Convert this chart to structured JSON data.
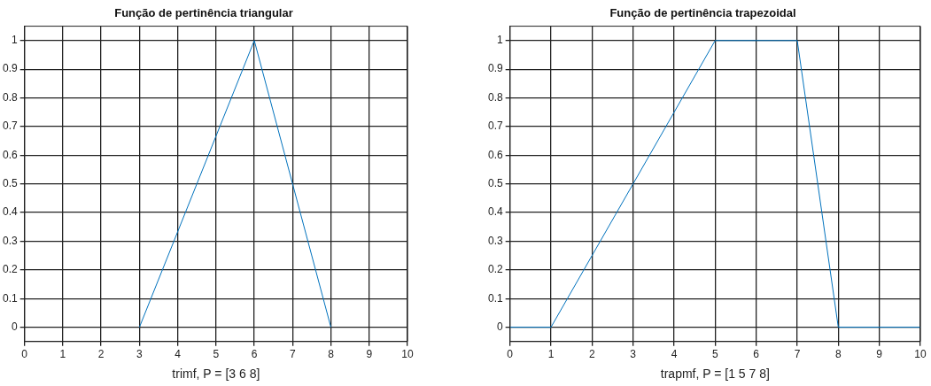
{
  "chart_data": [
    {
      "type": "line",
      "title": "Função de pertinência triangular",
      "xlabel": "trimf, P = [3 6 8]",
      "x": [
        3,
        6,
        8
      ],
      "series": [
        {
          "color": "#0072bd",
          "values": [
            0,
            1,
            0
          ]
        }
      ],
      "xlim": [
        0,
        10
      ],
      "xticks": [
        0,
        1,
        2,
        3,
        4,
        5,
        6,
        7,
        8,
        9,
        10
      ],
      "ylim": [
        -0.05,
        1.05
      ],
      "yticks": [
        0,
        0.1,
        0.2,
        0.3,
        0.4,
        0.5,
        0.6,
        0.7,
        0.8,
        0.9,
        1
      ],
      "grid": true,
      "legend": false,
      "marker": "none",
      "line_style": "solid"
    },
    {
      "type": "line",
      "title": "Função de pertinência trapezoidal",
      "xlabel": "trapmf, P = [1 5 7 8]",
      "x": [
        0,
        1,
        5,
        7,
        8,
        10
      ],
      "series": [
        {
          "color": "#0072bd",
          "values": [
            0,
            0,
            1,
            1,
            0,
            0
          ]
        }
      ],
      "xlim": [
        0,
        10
      ],
      "xticks": [
        0,
        1,
        2,
        3,
        4,
        5,
        6,
        7,
        8,
        9,
        10
      ],
      "ylim": [
        -0.05,
        1.05
      ],
      "yticks": [
        0,
        0.1,
        0.2,
        0.3,
        0.4,
        0.5,
        0.6,
        0.7,
        0.8,
        0.9,
        1
      ],
      "grid": true,
      "legend": false,
      "marker": "none",
      "line_style": "solid"
    }
  ]
}
